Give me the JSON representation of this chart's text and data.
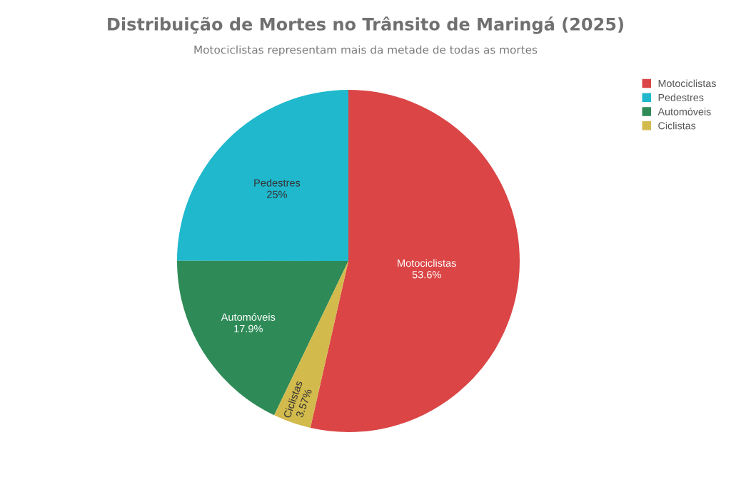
{
  "chart_data": {
    "type": "pie",
    "title": "Distribuição de Mortes no Trânsito de Maringá (2025)",
    "subtitle": "Motociclistas representam mais da metade de todas as mortes",
    "categories": [
      "Motociclistas",
      "Pedestres",
      "Automóveis",
      "Ciclistas"
    ],
    "values": [
      53.6,
      25,
      17.9,
      3.57
    ],
    "value_labels": [
      "53.6%",
      "25%",
      "17.9%",
      "3.57%"
    ],
    "colors": [
      "#db4545",
      "#1fb8cd",
      "#2e8b57",
      "#d2ba4c"
    ],
    "legend": "top right"
  }
}
